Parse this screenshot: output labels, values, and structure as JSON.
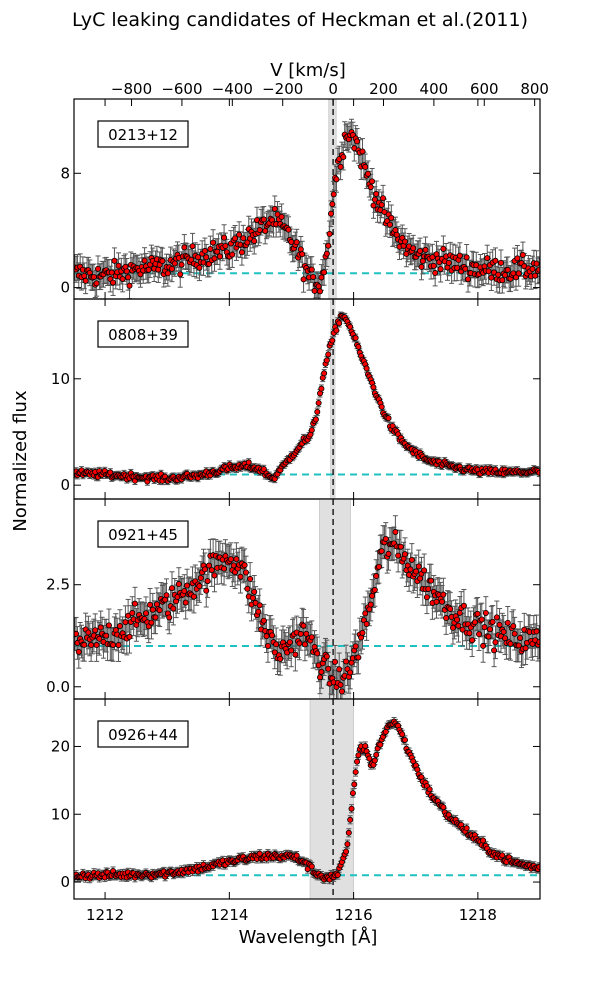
{
  "title": "LyC leaking candidates of Heckman et al.(2011)",
  "top_axis_label": "V [km/s]",
  "x_axis_label": "Wavelength [Å]",
  "y_axis_label": "Normalized flux",
  "colors": {
    "points": "#ff0000",
    "point_edge": "#000000",
    "errorbar": "#555555",
    "continuum": "#20c0c0",
    "line_center": "#000000",
    "shade": "#e0e0e0"
  },
  "chart_data": {
    "type": "scatter",
    "x_range": [
      1211.5,
      1219.0
    ],
    "x_ticks": [
      1212,
      1214,
      1216,
      1218
    ],
    "x_tick_labels": [
      "1212",
      "1214",
      "1216",
      "1218"
    ],
    "line_center_wavelength": 1215.67,
    "velocity_ticks": [
      -800,
      -600,
      -400,
      -200,
      0,
      200,
      400,
      600,
      800
    ],
    "velocity_tick_labels": [
      "−800",
      "−600",
      "−400",
      "−200",
      "0",
      "200",
      "400",
      "600",
      "800"
    ],
    "continuum_level": 1,
    "panels": [
      {
        "label": "0213+12",
        "ylim": [
          -0.8,
          13.2
        ],
        "y_ticks": [
          0,
          8
        ],
        "y_tick_labels": [
          "0",
          "8"
        ],
        "shade": [
          1215.6,
          1215.72
        ],
        "error": 0.9,
        "wavelength": [
          1211.5,
          1212.0,
          1212.5,
          1213.0,
          1213.5,
          1214.0,
          1214.4,
          1214.7,
          1214.9,
          1215.1,
          1215.3,
          1215.45,
          1215.55,
          1215.62,
          1215.7,
          1215.8,
          1215.9,
          1216.0,
          1216.1,
          1216.2,
          1216.35,
          1216.5,
          1216.7,
          1217.0,
          1217.5,
          1218.0,
          1218.5,
          1219.0
        ],
        "flux": [
          1.0,
          0.8,
          1.3,
          1.5,
          2.2,
          2.7,
          3.8,
          4.8,
          4.0,
          2.5,
          0.6,
          0.3,
          1.8,
          4.5,
          7.5,
          9.5,
          11.0,
          10.5,
          9.5,
          8.0,
          6.5,
          5.0,
          3.5,
          2.2,
          1.8,
          1.3,
          1.2,
          1.4
        ]
      },
      {
        "label": "0808+39",
        "ylim": [
          -1.3,
          17.5
        ],
        "y_ticks": [
          0,
          10
        ],
        "y_tick_labels": [
          "0",
          "10"
        ],
        "shade": [
          1215.63,
          1215.7
        ],
        "error": 0.35,
        "wavelength": [
          1211.5,
          1212.0,
          1212.5,
          1213.0,
          1213.5,
          1214.0,
          1214.3,
          1214.5,
          1214.7,
          1214.9,
          1215.1,
          1215.2,
          1215.3,
          1215.4,
          1215.5,
          1215.6,
          1215.7,
          1215.8,
          1215.9,
          1216.0,
          1216.2,
          1216.4,
          1216.6,
          1216.8,
          1217.0,
          1217.2,
          1217.5,
          1218.0,
          1218.5,
          1219.0
        ],
        "flux": [
          1.1,
          1.0,
          0.8,
          0.6,
          0.9,
          1.6,
          1.8,
          1.5,
          0.6,
          2.0,
          3.5,
          4.2,
          4.5,
          6.5,
          10.0,
          12.5,
          14.5,
          16.0,
          15.5,
          14.0,
          11.0,
          8.0,
          5.5,
          4.0,
          3.0,
          2.3,
          1.8,
          1.3,
          1.2,
          1.3
        ]
      },
      {
        "label": "0921+45",
        "ylim": [
          -0.3,
          4.6
        ],
        "y_ticks": [
          0,
          2.5
        ],
        "y_tick_labels": [
          "0.0",
          "2.5"
        ],
        "shade": [
          1215.45,
          1215.95
        ],
        "error": 0.4,
        "wavelength": [
          1211.5,
          1212.0,
          1212.5,
          1213.0,
          1213.5,
          1213.8,
          1214.0,
          1214.2,
          1214.4,
          1214.6,
          1214.8,
          1215.0,
          1215.2,
          1215.4,
          1215.6,
          1215.75,
          1215.9,
          1216.1,
          1216.3,
          1216.45,
          1216.6,
          1216.8,
          1217.0,
          1217.3,
          1217.6,
          1218.0,
          1218.5,
          1219.0
        ],
        "flux": [
          1.0,
          1.2,
          1.6,
          2.0,
          2.6,
          3.0,
          3.2,
          2.9,
          2.1,
          1.3,
          0.8,
          1.1,
          1.3,
          0.8,
          0.3,
          0.15,
          0.3,
          1.1,
          2.2,
          3.3,
          3.5,
          3.2,
          2.8,
          2.3,
          1.8,
          1.5,
          1.2,
          1.1
        ]
      },
      {
        "label": "0926+44",
        "ylim": [
          -2.5,
          27.0
        ],
        "y_ticks": [
          0,
          10,
          20
        ],
        "y_tick_labels": [
          "0",
          "10",
          "20"
        ],
        "shade": [
          1215.3,
          1216.0
        ],
        "error": 0.6,
        "wavelength": [
          1211.5,
          1212.0,
          1212.5,
          1213.0,
          1213.5,
          1214.0,
          1214.5,
          1215.0,
          1215.2,
          1215.4,
          1215.6,
          1215.75,
          1215.9,
          1216.0,
          1216.1,
          1216.2,
          1216.3,
          1216.4,
          1216.55,
          1216.7,
          1216.85,
          1217.0,
          1217.2,
          1217.5,
          1218.0,
          1218.3,
          1218.6,
          1219.0
        ],
        "flux": [
          1.0,
          1.0,
          1.1,
          1.3,
          2.0,
          3.0,
          3.8,
          3.8,
          3.0,
          1.2,
          0.6,
          1.2,
          5.0,
          14.0,
          20.0,
          19.5,
          17.0,
          20.0,
          23.0,
          23.5,
          20.0,
          17.0,
          13.5,
          10.0,
          6.0,
          4.0,
          2.8,
          2.0
        ]
      }
    ]
  }
}
